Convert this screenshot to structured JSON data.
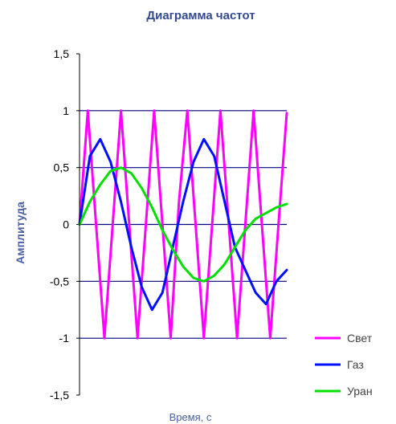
{
  "chart_data": {
    "type": "line",
    "title": "Диаграмма частот",
    "xlabel": "Время, с",
    "ylabel": "Амплитуда",
    "ylim": [
      -1.5,
      1.5
    ],
    "yticks": [
      "1,5",
      "1",
      "0,5",
      "0",
      "-0,5",
      "-1",
      "-1,5"
    ],
    "grid_y": true,
    "legend_position": "bottom-right",
    "series": [
      {
        "name": "Свет",
        "color": "#ff00ff",
        "x": [
          0,
          0.04,
          0.08,
          0.12,
          0.16,
          0.2,
          0.24,
          0.28,
          0.32,
          0.36,
          0.4,
          0.44,
          0.48,
          0.52,
          0.56,
          0.6,
          0.64,
          0.68,
          0.72,
          0.76,
          0.8,
          0.84,
          0.88,
          0.92,
          0.96,
          1
        ],
        "values": [
          0,
          1,
          0,
          -1,
          0,
          1,
          0,
          -1,
          0,
          1,
          0,
          -1,
          0.2,
          1,
          0,
          -1,
          0,
          1,
          0,
          -1,
          0,
          1,
          0,
          -1,
          0,
          0.98
        ]
      },
      {
        "name": "Газ",
        "color": "#0010ff",
        "x": [
          0,
          0.05,
          0.1,
          0.15,
          0.2,
          0.25,
          0.3,
          0.35,
          0.4,
          0.45,
          0.5,
          0.55,
          0.6,
          0.65,
          0.7,
          0.75,
          0.8,
          0.85,
          0.9,
          0.95,
          1
        ],
        "values": [
          0,
          0.6,
          0.75,
          0.55,
          0.2,
          -0.2,
          -0.55,
          -0.75,
          -0.6,
          -0.2,
          0.2,
          0.55,
          0.75,
          0.6,
          0.2,
          -0.2,
          -0.4,
          -0.6,
          -0.7,
          -0.5,
          -0.4
        ]
      },
      {
        "name": "Уран",
        "color": "#00e000",
        "x": [
          0,
          0.05,
          0.1,
          0.15,
          0.2,
          0.25,
          0.3,
          0.35,
          0.4,
          0.45,
          0.5,
          0.55,
          0.6,
          0.65,
          0.7,
          0.75,
          0.8,
          0.85,
          0.9,
          0.95,
          1
        ],
        "values": [
          0,
          0.2,
          0.35,
          0.47,
          0.5,
          0.45,
          0.32,
          0.15,
          -0.05,
          -0.22,
          -0.37,
          -0.47,
          -0.5,
          -0.45,
          -0.35,
          -0.2,
          -0.05,
          0.05,
          0.1,
          0.15,
          0.18
        ]
      }
    ]
  }
}
